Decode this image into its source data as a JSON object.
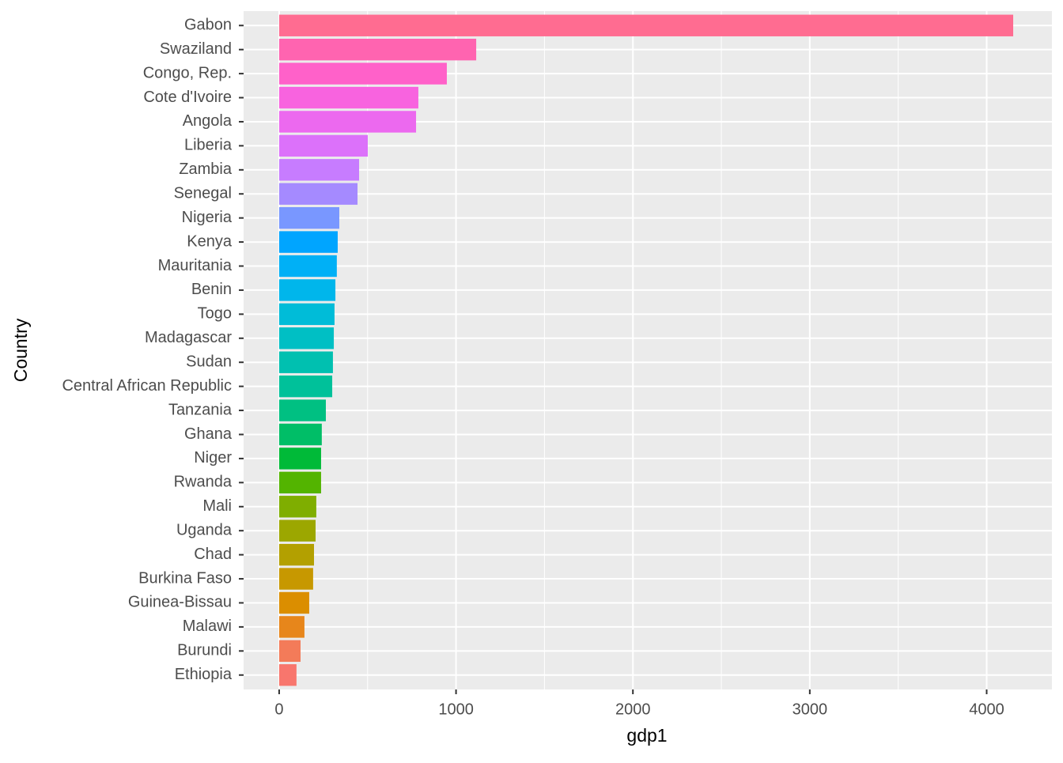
{
  "chart_data": {
    "type": "bar",
    "orientation": "horizontal",
    "x_label": "gdp1",
    "y_label": "Country",
    "categories": [
      "Gabon",
      "Swaziland",
      "Congo, Rep.",
      "Cote d'Ivoire",
      "Angola",
      "Liberia",
      "Zambia",
      "Senegal",
      "Nigeria",
      "Kenya",
      "Mauritania",
      "Benin",
      "Togo",
      "Madagascar",
      "Sudan",
      "Central African Republic",
      "Tanzania",
      "Ghana",
      "Niger",
      "Rwanda",
      "Mali",
      "Uganda",
      "Chad",
      "Burkina Faso",
      "Guinea-Bissau",
      "Malawi",
      "Burundi",
      "Ethiopia"
    ],
    "values": [
      4150,
      1114,
      948,
      787,
      774,
      501,
      452,
      443,
      340,
      331,
      326,
      318,
      313,
      309,
      304,
      300,
      264,
      241,
      237,
      237,
      210,
      206,
      197,
      192,
      170,
      143,
      121,
      98
    ],
    "colors": [
      "#FF6C91",
      "#FF64B0",
      "#FF61C9",
      "#F863DF",
      "#EC69EF",
      "#DC71FA",
      "#C77CFF",
      "#A58AFF",
      "#7997FF",
      "#00A5FF",
      "#00B0F6",
      "#00B6EB",
      "#00BCD8",
      "#00BFC4",
      "#00C0B0",
      "#00C19A",
      "#00C082",
      "#00BE67",
      "#00BA38",
      "#53B400",
      "#7FAE00",
      "#9CA700",
      "#B3A000",
      "#C79800",
      "#DB8E00",
      "#E7861B",
      "#F37B59",
      "#F8766D"
    ],
    "xlim": [
      -201,
      4369
    ],
    "xticks": [
      0,
      1000,
      2000,
      3000,
      4000
    ],
    "grid": true
  }
}
